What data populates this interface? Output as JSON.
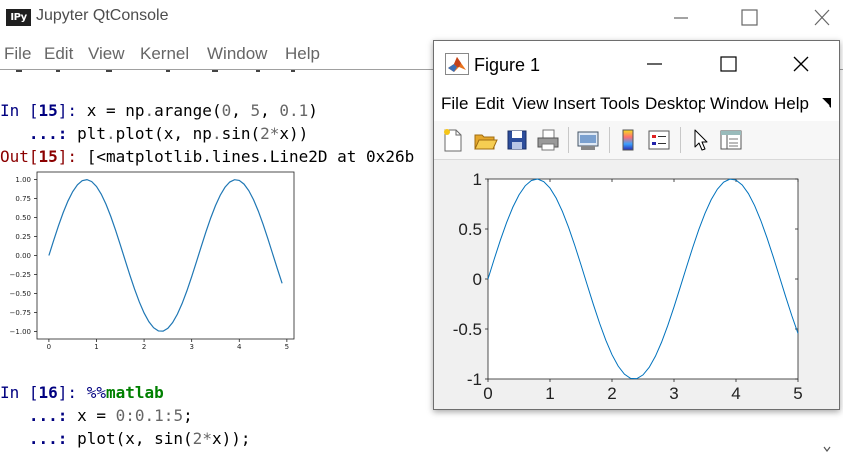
{
  "qtconsole": {
    "title": "Jupyter QtConsole",
    "icon_label": "IPy",
    "icons": {
      "app": "ipython-icon",
      "minimize": "minimize-icon",
      "maximize": "maximize-icon",
      "close": "close-icon"
    },
    "menus": [
      "File",
      "Edit",
      "View",
      "Kernel",
      "Window",
      "Help"
    ],
    "cells": [
      {
        "in_label": "In [",
        "in_number": "15",
        "in_close": "]:",
        "line1": {
          "a": " x = np",
          "b": ".",
          "c": "arange(",
          "d": "0",
          "e": ", ",
          "f": "5",
          "g": ", ",
          "h": "0.1",
          "i": ")"
        },
        "cont": "   ...:",
        "line2": {
          "a": " plt",
          "b": ".",
          "c": "plot(x, np",
          "d": ".",
          "e": "sin(",
          "f": "2",
          "g": "*",
          "h": "x))"
        },
        "out_label": "Out[",
        "out_number": "15",
        "out_close": "]:",
        "out_text": " [<matplotlib.lines.Line2D at 0x26b"
      },
      {
        "in_label": "In [",
        "in_number": "16",
        "in_close": "]:",
        "magic_pct": " %%",
        "magic_kw": "matlab",
        "cont": "   ...:",
        "line2": {
          "a": " x = ",
          "b": "0",
          "c": ":",
          "d": "0.1",
          "e": ":",
          "f": "5",
          "g": ";"
        },
        "line3": {
          "a": " plot(x, sin(",
          "b": "2",
          "c": "*",
          "d": "x));"
        }
      }
    ]
  },
  "figure": {
    "title": "Figure 1",
    "icons": {
      "logo": "matlab-logo-icon",
      "minimize": "minimize-icon",
      "maximize": "maximize-icon",
      "close": "close-icon",
      "more": "menu-overflow-icon"
    },
    "menus": [
      "File",
      "Edit",
      "View",
      "Insert",
      "Tools",
      "Desktop",
      "Window",
      "Help"
    ],
    "toolbar": [
      {
        "name": "new-figure-icon"
      },
      {
        "name": "open-file-icon"
      },
      {
        "name": "save-icon"
      },
      {
        "name": "print-icon"
      },
      {
        "name": "link-plot-icon"
      },
      {
        "name": "colorbar-icon"
      },
      {
        "name": "legend-icon"
      },
      {
        "name": "edit-plot-pointer-icon"
      },
      {
        "name": "property-inspector-icon"
      }
    ]
  },
  "chart_data": [
    {
      "type": "line",
      "title": "",
      "xlabel": "",
      "ylabel": "",
      "function": "sin(2*x)",
      "x_start": 0,
      "x_end": 4.9,
      "x_step": 0.1,
      "xlim": [
        -0.25,
        5.15
      ],
      "ylim": [
        -1.1,
        1.1
      ],
      "x_ticks": [
        0,
        1,
        2,
        3,
        4,
        5
      ],
      "y_ticks": [
        -1.0,
        -0.75,
        -0.5,
        -0.25,
        0.0,
        0.25,
        0.5,
        0.75,
        1.0
      ],
      "x_tick_labels": [
        "0",
        "1",
        "2",
        "3",
        "4",
        "5"
      ],
      "y_tick_labels": [
        "−1.00",
        "−0.75",
        "−0.50",
        "−0.25",
        "0.00",
        "0.25",
        "0.50",
        "0.75",
        "1.00"
      ],
      "grid": false,
      "color": "#1f77b4"
    },
    {
      "type": "line",
      "title": "",
      "xlabel": "",
      "ylabel": "",
      "function": "sin(2*x)",
      "x_start": 0,
      "x_end": 5,
      "x_step": 0.1,
      "xlim": [
        0,
        5
      ],
      "ylim": [
        -1,
        1
      ],
      "x_ticks": [
        0,
        1,
        2,
        3,
        4,
        5
      ],
      "y_ticks": [
        -1,
        -0.5,
        0,
        0.5,
        1
      ],
      "x_tick_labels": [
        "0",
        "1",
        "2",
        "3",
        "4",
        "5"
      ],
      "y_tick_labels": [
        "-1",
        "-0.5",
        "0",
        "0.5",
        "1"
      ],
      "grid": false,
      "color": "#0072bd"
    }
  ]
}
